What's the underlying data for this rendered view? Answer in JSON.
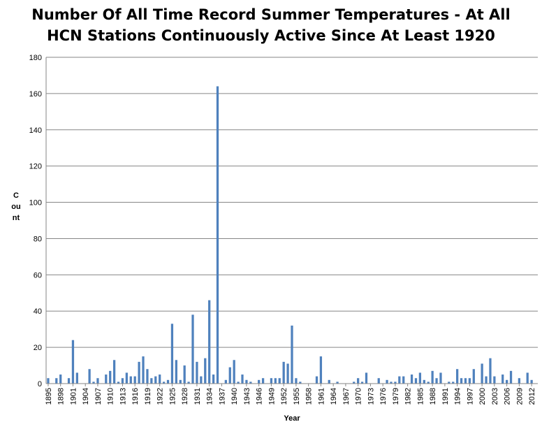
{
  "chart_data": {
    "type": "bar",
    "title_lines": [
      "Number Of All Time Record  Summer Temperatures - At All",
      "HCN Stations Continuously Active Since At Least 1920"
    ],
    "xlabel": "Year",
    "ylabel": "Count",
    "ylim": [
      0,
      180
    ],
    "yticks": [
      0,
      20,
      40,
      60,
      80,
      100,
      120,
      140,
      160,
      180
    ],
    "grid": true,
    "legend": "none",
    "bar_color": "#4f81bd",
    "x_tick_labels": [
      "1895",
      "1898",
      "1901",
      "1904",
      "1907",
      "1910",
      "1913",
      "1916",
      "1919",
      "1922",
      "1925",
      "1928",
      "1931",
      "1934",
      "1937",
      "1940",
      "1943",
      "1946",
      "1949",
      "1952",
      "1955",
      "1958",
      "1961",
      "1964",
      "1967",
      "1970",
      "1973",
      "1976",
      "1979",
      "1982",
      "1985",
      "1988",
      "1991",
      "1994",
      "1997",
      "2000",
      "2003",
      "2006",
      "2009",
      "2012"
    ],
    "categories": [
      1895,
      1896,
      1897,
      1898,
      1899,
      1900,
      1901,
      1902,
      1903,
      1904,
      1905,
      1906,
      1907,
      1908,
      1909,
      1910,
      1911,
      1912,
      1913,
      1914,
      1915,
      1916,
      1917,
      1918,
      1919,
      1920,
      1921,
      1922,
      1923,
      1924,
      1925,
      1926,
      1927,
      1928,
      1929,
      1930,
      1931,
      1932,
      1933,
      1934,
      1935,
      1936,
      1937,
      1938,
      1939,
      1940,
      1941,
      1942,
      1943,
      1944,
      1945,
      1946,
      1947,
      1948,
      1949,
      1950,
      1951,
      1952,
      1953,
      1954,
      1955,
      1956,
      1957,
      1958,
      1959,
      1960,
      1961,
      1962,
      1963,
      1964,
      1965,
      1966,
      1967,
      1968,
      1969,
      1970,
      1971,
      1972,
      1973,
      1974,
      1975,
      1976,
      1977,
      1978,
      1979,
      1980,
      1981,
      1982,
      1983,
      1984,
      1985,
      1986,
      1987,
      1988,
      1989,
      1990,
      1991,
      1992,
      1993,
      1994,
      1995,
      1996,
      1997,
      1998,
      1999,
      2000,
      2001,
      2002,
      2003,
      2004,
      2005,
      2006,
      2007,
      2008,
      2009,
      2010,
      2011,
      2012,
      2013
    ],
    "values": [
      3,
      0,
      3,
      5,
      0,
      3,
      24,
      6,
      0,
      0,
      8,
      1,
      3,
      0,
      5,
      7,
      13,
      1,
      3,
      6,
      4,
      4,
      12,
      15,
      8,
      3,
      4,
      5,
      1,
      2,
      33,
      13,
      2,
      10,
      1,
      38,
      12,
      4,
      14,
      46,
      5,
      164,
      0,
      2,
      9,
      13,
      1,
      5,
      2,
      1,
      0,
      2,
      3,
      0,
      3,
      3,
      3,
      12,
      11,
      32,
      3,
      1,
      0,
      0,
      0,
      4,
      15,
      0,
      2,
      0,
      1,
      0,
      0,
      0,
      1,
      3,
      1,
      6,
      0,
      0,
      3,
      0,
      2,
      1,
      1,
      4,
      4,
      0,
      5,
      3,
      6,
      2,
      1,
      7,
      3,
      6,
      0,
      1,
      1,
      8,
      3,
      3,
      3,
      8,
      0,
      11,
      4,
      14,
      4,
      0,
      5,
      2,
      7,
      0,
      3,
      0,
      6,
      2,
      0
    ]
  }
}
